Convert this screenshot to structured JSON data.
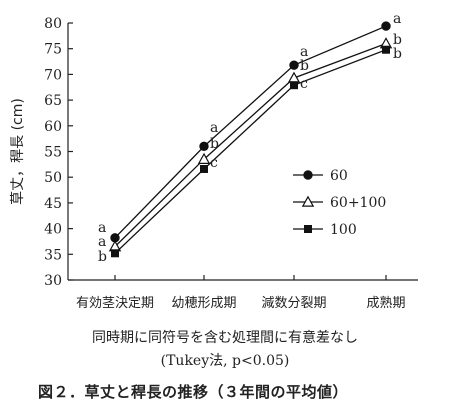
{
  "chart_data": {
    "type": "line",
    "ylabel": "草丈，稈長 (cm)",
    "ylim": [
      30,
      80
    ],
    "yticks": [
      "30",
      "35",
      "40",
      "45",
      "50",
      "55",
      "60",
      "65",
      "70",
      "75",
      "80"
    ],
    "categories": [
      "有効茎決定期",
      "幼穂形成期",
      "減数分裂期",
      "成熟期"
    ],
    "series": [
      {
        "name": "60",
        "marker": "filled-circle",
        "values": [
          38.2,
          56.0,
          71.8,
          79.4
        ],
        "letters": [
          "a",
          "a",
          "a",
          "a"
        ]
      },
      {
        "name": "60+100",
        "marker": "open-triangle",
        "values": [
          36.5,
          53.5,
          69.3,
          76.0
        ],
        "letters": [
          "a",
          "b",
          "b",
          "b"
        ]
      },
      {
        "name": "100",
        "marker": "filled-square",
        "values": [
          35.2,
          51.6,
          67.9,
          74.8
        ],
        "letters": [
          "b",
          "c",
          "c",
          "b"
        ]
      }
    ],
    "legend_position": "middle-right",
    "grid": false
  },
  "notes": {
    "line1": "同時期に同符号を含む処理間に有意差なし",
    "line2": "(Tukey法, p<0.05)"
  },
  "caption": "図２．草丈と稈長の推移（３年間の平均値）"
}
